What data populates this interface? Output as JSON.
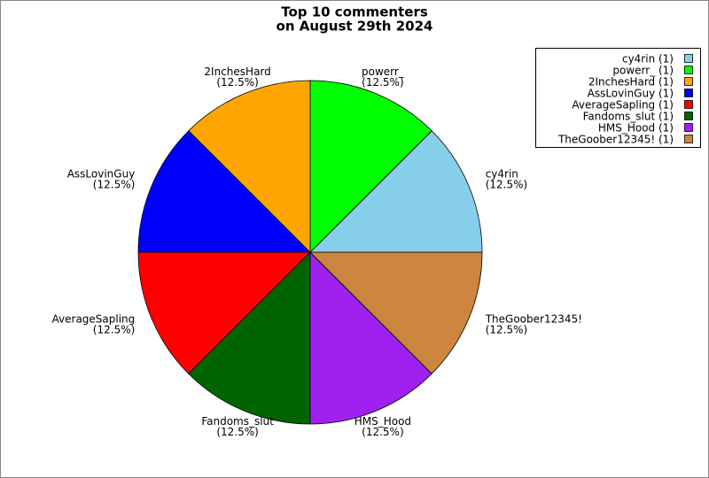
{
  "chart_data": {
    "type": "pie",
    "title_lines": [
      "Top 10 commenters",
      "on August 29th 2024"
    ],
    "categories": [
      "cy4rin",
      "powerr_",
      "2InchesHard",
      "AssLovinGuy",
      "AverageSapling",
      "Fandoms_slut",
      "HMS_Hood",
      "TheGoober12345!"
    ],
    "values": [
      1,
      1,
      1,
      1,
      1,
      1,
      1,
      1
    ],
    "value_labels": [
      "(12.5%)",
      "(12.5%)",
      "(12.5%)",
      "(12.5%)",
      "(12.5%)",
      "(12.5%)",
      "(12.5%)",
      "(12.5%)"
    ],
    "legend_labels": [
      "cy4rin (1)",
      "powerr_ (1)",
      "2InchesHard (1)",
      "AssLovinGuy (1)",
      "AverageSapling (1)",
      "Fandoms_slut (1)",
      "HMS_Hood (1)",
      "TheGoober12345! (1)"
    ],
    "colors": [
      "#87ceeb",
      "#00ff00",
      "#ffa500",
      "#0000ff",
      "#ff0000",
      "#006400",
      "#a020f0",
      "#cd853f"
    ],
    "legend": "top-right"
  }
}
